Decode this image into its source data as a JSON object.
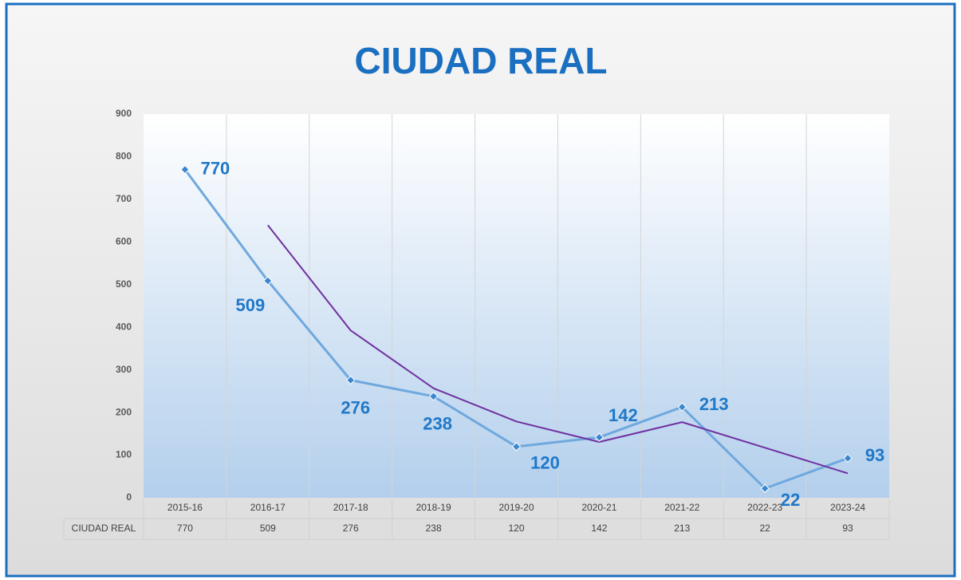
{
  "chart_data": {
    "type": "line",
    "title": "CIUDAD REAL",
    "categories": [
      "2015-16",
      "2016-17",
      "2017-18",
      "2018-19",
      "2019-20",
      "2020-21",
      "2021-22",
      "2022-23",
      "2023-24"
    ],
    "series": [
      {
        "name": "CIUDAD REAL",
        "color": "#6fa8de",
        "values": [
          770,
          509,
          276,
          238,
          120,
          142,
          213,
          22,
          93
        ]
      },
      {
        "color": "#7030a0",
        "values": [
          null,
          639.5,
          392.5,
          257,
          179,
          131,
          177.5,
          117.5,
          57.5
        ]
      }
    ],
    "label_color": "#1f78c8",
    "ylim": [
      0,
      900
    ],
    "yticks": [
      0,
      100,
      200,
      300,
      400,
      500,
      600,
      700,
      800,
      900
    ],
    "data_table": true
  }
}
